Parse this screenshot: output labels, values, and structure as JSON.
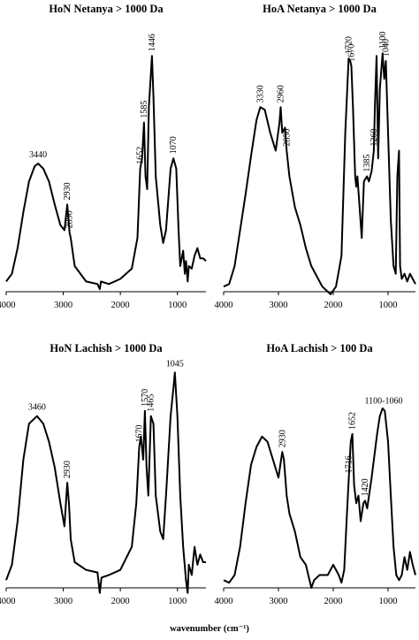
{
  "xlabel": "wavenumber (cm⁻¹)",
  "chart_data": [
    {
      "type": "line",
      "title": "HoN Netanya > 1000 Da",
      "xlim": [
        4000,
        500
      ],
      "ylim": [
        0,
        100
      ],
      "xticks": [
        4000,
        3000,
        2000,
        1000
      ],
      "x": [
        4000,
        3900,
        3800,
        3700,
        3600,
        3500,
        3440,
        3350,
        3250,
        3150,
        3050,
        2980,
        2930,
        2900,
        2890,
        2870,
        2800,
        2600,
        2400,
        2360,
        2340,
        2200,
        2000,
        1800,
        1700,
        1652,
        1620,
        1585,
        1560,
        1530,
        1500,
        1446,
        1420,
        1380,
        1300,
        1250,
        1200,
        1120,
        1070,
        1020,
        980,
        950,
        900,
        870,
        850,
        820,
        800,
        750,
        700,
        650,
        600,
        550,
        500
      ],
      "values": [
        4,
        7,
        17,
        31,
        43,
        49,
        50,
        48,
        43,
        34,
        26,
        24,
        34,
        26,
        23,
        21,
        10,
        4,
        3,
        1,
        4,
        3,
        5,
        9,
        21,
        48,
        52,
        66,
        45,
        40,
        72,
        92,
        76,
        45,
        26,
        19,
        24,
        48,
        52,
        48,
        24,
        10,
        16,
        7,
        12,
        4,
        10,
        9,
        14,
        17,
        13,
        13,
        12
      ],
      "annotations": [
        {
          "x": 3440,
          "label": "3440",
          "orientation": "horizontal"
        },
        {
          "x": 2930,
          "label": "2930",
          "orientation": "vertical"
        },
        {
          "x": 2890,
          "label": "2890",
          "orientation": "vertical"
        },
        {
          "x": 1652,
          "label": "1652",
          "orientation": "vertical"
        },
        {
          "x": 1585,
          "label": "1585",
          "orientation": "vertical"
        },
        {
          "x": 1446,
          "label": "1446",
          "orientation": "vertical"
        },
        {
          "x": 1070,
          "label": "1070",
          "orientation": "vertical"
        }
      ]
    },
    {
      "type": "line",
      "title": "HoA Netanya > 1000 Da",
      "xlim": [
        4000,
        500
      ],
      "ylim": [
        0,
        100
      ],
      "xticks": [
        4000,
        3000,
        2000,
        1000
      ],
      "x": [
        4000,
        3900,
        3800,
        3700,
        3600,
        3500,
        3400,
        3330,
        3250,
        3150,
        3050,
        2980,
        2960,
        2930,
        2880,
        2850,
        2800,
        2700,
        2600,
        2500,
        2400,
        2200,
        2050,
        1950,
        1850,
        1780,
        1720,
        1690,
        1670,
        1640,
        1600,
        1580,
        1560,
        1520,
        1480,
        1440,
        1385,
        1350,
        1300,
        1260,
        1240,
        1210,
        1180,
        1150,
        1100,
        1070,
        1040,
        1000,
        950,
        900,
        860,
        830,
        800,
        780,
        750,
        700,
        650,
        600,
        550,
        500
      ],
      "values": [
        2,
        3,
        10,
        24,
        38,
        53,
        67,
        72,
        71,
        62,
        55,
        66,
        72,
        62,
        64,
        55,
        45,
        33,
        26,
        17,
        10,
        2,
        -1,
        2,
        14,
        62,
        91,
        90,
        88,
        72,
        45,
        41,
        45,
        33,
        21,
        43,
        45,
        43,
        47,
        55,
        72,
        92,
        52,
        79,
        93,
        83,
        90,
        62,
        28,
        10,
        7,
        45,
        55,
        10,
        5,
        7,
        4,
        7,
        5,
        3
      ],
      "annotations": [
        {
          "x": 3330,
          "label": "3330",
          "orientation": "vertical"
        },
        {
          "x": 2960,
          "label": "2960",
          "orientation": "vertical"
        },
        {
          "x": 2850,
          "label": "2850",
          "orientation": "vertical"
        },
        {
          "x": 1720,
          "label": "1720",
          "orientation": "vertical"
        },
        {
          "x": 1670,
          "label": "1670",
          "orientation": "vertical"
        },
        {
          "x": 1385,
          "label": "1385",
          "orientation": "vertical"
        },
        {
          "x": 1260,
          "label": "1260",
          "orientation": "vertical"
        },
        {
          "x": 1100,
          "label": "1100",
          "orientation": "vertical"
        },
        {
          "x": 1040,
          "label": "1040",
          "orientation": "vertical"
        }
      ]
    },
    {
      "type": "line",
      "title": "HoN Lachish > 1000 Da",
      "xlim": [
        4000,
        500
      ],
      "ylim": [
        0,
        100
      ],
      "xticks": [
        4000,
        3000,
        2000,
        1000
      ],
      "x": [
        4000,
        3900,
        3800,
        3700,
        3600,
        3460,
        3350,
        3250,
        3150,
        3050,
        2980,
        2930,
        2900,
        2870,
        2800,
        2600,
        2400,
        2360,
        2330,
        2200,
        2000,
        1800,
        1720,
        1670,
        1640,
        1600,
        1570,
        1540,
        1510,
        1465,
        1420,
        1380,
        1300,
        1250,
        1200,
        1120,
        1070,
        1045,
        1000,
        950,
        900,
        850,
        820,
        800,
        750,
        700,
        650,
        600,
        550,
        500
      ],
      "values": [
        3,
        9,
        26,
        50,
        64,
        67,
        64,
        57,
        47,
        33,
        24,
        41,
        33,
        19,
        10,
        7,
        6,
        -2,
        4,
        5,
        7,
        16,
        33,
        55,
        59,
        50,
        69,
        47,
        36,
        67,
        64,
        36,
        22,
        19,
        36,
        67,
        78,
        84,
        67,
        36,
        16,
        3,
        -2,
        9,
        5,
        16,
        9,
        13,
        10,
        10
      ],
      "annotations": [
        {
          "x": 3460,
          "label": "3460",
          "orientation": "horizontal"
        },
        {
          "x": 2930,
          "label": "2930",
          "orientation": "vertical"
        },
        {
          "x": 1670,
          "label": "1670",
          "orientation": "vertical"
        },
        {
          "x": 1570,
          "label": "1570",
          "orientation": "vertical"
        },
        {
          "x": 1465,
          "label": "1465",
          "orientation": "vertical"
        },
        {
          "x": 1045,
          "label": "1045",
          "orientation": "horizontal"
        }
      ]
    },
    {
      "type": "line",
      "title": "HoA Lachish > 100 Da",
      "xlim": [
        4000,
        500
      ],
      "ylim": [
        0,
        100
      ],
      "xticks": [
        4000,
        3000,
        2000,
        1000
      ],
      "x": [
        4000,
        3900,
        3800,
        3700,
        3600,
        3500,
        3400,
        3300,
        3200,
        3100,
        3000,
        2930,
        2900,
        2850,
        2800,
        2700,
        2600,
        2500,
        2400,
        2350,
        2250,
        2100,
        2000,
        1900,
        1850,
        1800,
        1750,
        1716,
        1680,
        1652,
        1620,
        1580,
        1540,
        1500,
        1450,
        1420,
        1380,
        1300,
        1200,
        1150,
        1100,
        1060,
        1000,
        950,
        900,
        850,
        800,
        750,
        700,
        650,
        600,
        550,
        500
      ],
      "values": [
        3,
        2,
        5,
        16,
        33,
        48,
        55,
        59,
        57,
        50,
        43,
        53,
        50,
        36,
        29,
        22,
        12,
        9,
        0,
        3,
        5,
        5,
        9,
        5,
        2,
        7,
        29,
        43,
        57,
        60,
        40,
        33,
        36,
        26,
        33,
        34,
        31,
        43,
        60,
        67,
        70,
        69,
        57,
        36,
        16,
        5,
        3,
        5,
        12,
        7,
        14,
        9,
        5
      ],
      "annotations": [
        {
          "x": 2930,
          "label": "2930",
          "orientation": "vertical"
        },
        {
          "x": 1716,
          "label": "1716",
          "orientation": "vertical"
        },
        {
          "x": 1652,
          "label": "1652",
          "orientation": "vertical"
        },
        {
          "x": 1420,
          "label": "1420",
          "orientation": "vertical"
        },
        {
          "x": 1080,
          "label": "1100-1060",
          "orientation": "horizontal"
        }
      ]
    }
  ]
}
